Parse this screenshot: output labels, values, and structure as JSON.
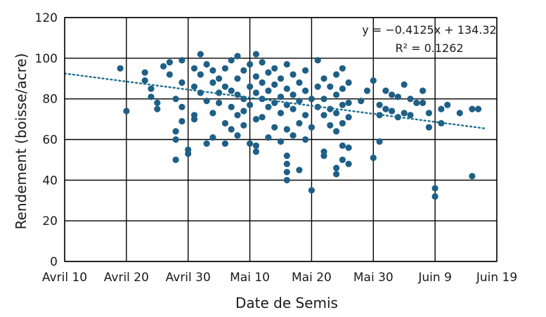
{
  "chart_data": {
    "type": "scatter",
    "title": "",
    "xlabel": "Date de Semis",
    "ylabel": "Rendement (boisse/acre)",
    "x_ticks": [
      "Avril 10",
      "Avril 20",
      "Avril 30",
      "Mai 10",
      "Mai 20",
      "Mai 30",
      "Juin 9",
      "Juin 19"
    ],
    "y_ticks": [
      "0",
      "20",
      "40",
      "60",
      "80",
      "100",
      "120"
    ],
    "xlim": [
      "Avril 10",
      "Juin 19"
    ],
    "ylim": [
      0,
      120
    ],
    "grid": true,
    "point_color": "#1f5f86",
    "trendline": {
      "equation": "y = −0.4125x + 134.32",
      "r_squared": "R² = 0.1262",
      "from": [
        "Avril 10",
        92.5
      ],
      "to": [
        "Juin 17",
        65.5
      ],
      "color": "#1f6f8f"
    },
    "points": [
      [
        "Avril 19",
        95
      ],
      [
        "Avril 20",
        74
      ],
      [
        "Avril 23",
        93
      ],
      [
        "Avril 23",
        89
      ],
      [
        "Avril 24",
        85
      ],
      [
        "Avril 24",
        81
      ],
      [
        "Avril 25",
        78
      ],
      [
        "Avril 25",
        75
      ],
      [
        "Avril 26",
        96
      ],
      [
        "Avril 27",
        98
      ],
      [
        "Avril 27",
        92
      ],
      [
        "Avril 28",
        80
      ],
      [
        "Avril 28",
        64
      ],
      [
        "Avril 28",
        60
      ],
      [
        "Avril 28",
        50
      ],
      [
        "Avril 29",
        99
      ],
      [
        "Avril 29",
        88
      ],
      [
        "Avril 29",
        76
      ],
      [
        "Avril 29",
        69
      ],
      [
        "Avril 30",
        55
      ],
      [
        "Avril 30",
        53
      ],
      [
        "Mai 1",
        95
      ],
      [
        "Mai 1",
        86
      ],
      [
        "Mai 1",
        72
      ],
      [
        "Mai 1",
        70
      ],
      [
        "Mai 2",
        102
      ],
      [
        "Mai 2",
        92
      ],
      [
        "Mai 2",
        83
      ],
      [
        "Mai 3",
        97
      ],
      [
        "Mai 3",
        79
      ],
      [
        "Mai 3",
        58
      ],
      [
        "Mai 4",
        94
      ],
      [
        "Mai 4",
        88
      ],
      [
        "Mai 4",
        73
      ],
      [
        "Mai 4",
        61
      ],
      [
        "Mai 5",
        90
      ],
      [
        "Mai 5",
        83
      ],
      [
        "Mai 5",
        78
      ],
      [
        "Mai 6",
        95
      ],
      [
        "Mai 6",
        86
      ],
      [
        "Mai 6",
        68
      ],
      [
        "Mai 6",
        58
      ],
      [
        "Mai 7",
        99
      ],
      [
        "Mai 7",
        84
      ],
      [
        "Mai 7",
        76
      ],
      [
        "Mai 7",
        65
      ],
      [
        "Mai 8",
        101
      ],
      [
        "Mai 8",
        90
      ],
      [
        "Mai 8",
        82
      ],
      [
        "Mai 8",
        72
      ],
      [
        "Mai 8",
        62
      ],
      [
        "Mai 9",
        94
      ],
      [
        "Mai 9",
        80
      ],
      [
        "Mai 9",
        74
      ],
      [
        "Mai 9",
        67
      ],
      [
        "Mai 10",
        97
      ],
      [
        "Mai 10",
        86
      ],
      [
        "Mai 10",
        77
      ],
      [
        "Mai 10",
        58
      ],
      [
        "Mai 11",
        102
      ],
      [
        "Mai 11",
        91
      ],
      [
        "Mai 11",
        83
      ],
      [
        "Mai 11",
        70
      ],
      [
        "Mai 11",
        57
      ],
      [
        "Mai 11",
        54
      ],
      [
        "Mai 12",
        98
      ],
      [
        "Mai 12",
        88
      ],
      [
        "Mai 12",
        80
      ],
      [
        "Mai 12",
        71
      ],
      [
        "Mai 13",
        93
      ],
      [
        "Mai 13",
        84
      ],
      [
        "Mai 13",
        76
      ],
      [
        "Mai 13",
        61
      ],
      [
        "Mai 14",
        95
      ],
      [
        "Mai 14",
        87
      ],
      [
        "Mai 14",
        78
      ],
      [
        "Mai 14",
        66
      ],
      [
        "Mai 15",
        90
      ],
      [
        "Mai 15",
        81
      ],
      [
        "Mai 15",
        73
      ],
      [
        "Mai 15",
        59
      ],
      [
        "Mai 16",
        97
      ],
      [
        "Mai 16",
        85
      ],
      [
        "Mai 16",
        77
      ],
      [
        "Mai 16",
        65
      ],
      [
        "Mai 16",
        52
      ],
      [
        "Mai 16",
        48
      ],
      [
        "Mai 16",
        44
      ],
      [
        "Mai 16",
        40
      ],
      [
        "Mai 17",
        92
      ],
      [
        "Mai 17",
        82
      ],
      [
        "Mai 17",
        75
      ],
      [
        "Mai 17",
        62
      ],
      [
        "Mai 18",
        88
      ],
      [
        "Mai 18",
        79
      ],
      [
        "Mai 18",
        68
      ],
      [
        "Mai 18",
        45
      ],
      [
        "Mai 19",
        94
      ],
      [
        "Mai 19",
        84
      ],
      [
        "Mai 19",
        72
      ],
      [
        "Mai 19",
        60
      ],
      [
        "Mai 20",
        80
      ],
      [
        "Mai 20",
        66
      ],
      [
        "Mai 20",
        35
      ],
      [
        "Mai 21",
        99
      ],
      [
        "Mai 21",
        86
      ],
      [
        "Mai 21",
        76
      ],
      [
        "Mai 22",
        90
      ],
      [
        "Mai 22",
        80
      ],
      [
        "Mai 22",
        72
      ],
      [
        "Mai 22",
        54
      ],
      [
        "Mai 22",
        52
      ],
      [
        "Mai 23",
        86
      ],
      [
        "Mai 23",
        75
      ],
      [
        "Mai 23",
        67
      ],
      [
        "Mai 24",
        92
      ],
      [
        "Mai 24",
        82
      ],
      [
        "Mai 24",
        73
      ],
      [
        "Mai 24",
        64
      ],
      [
        "Mai 24",
        46
      ],
      [
        "Mai 24",
        43
      ],
      [
        "Mai 25",
        95
      ],
      [
        "Mai 25",
        85
      ],
      [
        "Mai 25",
        77
      ],
      [
        "Mai 25",
        68
      ],
      [
        "Mai 25",
        57
      ],
      [
        "Mai 25",
        50
      ],
      [
        "Mai 26",
        88
      ],
      [
        "Mai 26",
        78
      ],
      [
        "Mai 26",
        71
      ],
      [
        "Mai 26",
        56
      ],
      [
        "Mai 26",
        48
      ],
      [
        "Mai 28",
        79
      ],
      [
        "Mai 29",
        84
      ],
      [
        "Mai 30",
        89
      ],
      [
        "Mai 30",
        51
      ],
      [
        "Mai 31",
        77
      ],
      [
        "Mai 31",
        72
      ],
      [
        "Mai 31",
        59
      ],
      [
        "Juin 1",
        84
      ],
      [
        "Juin 1",
        75
      ],
      [
        "Juin 2",
        82
      ],
      [
        "Juin 2",
        74
      ],
      [
        "Juin 3",
        81
      ],
      [
        "Juin 3",
        71
      ],
      [
        "Juin 4",
        87
      ],
      [
        "Juin 4",
        73
      ],
      [
        "Juin 5",
        80
      ],
      [
        "Juin 5",
        72
      ],
      [
        "Juin 6",
        78
      ],
      [
        "Juin 7",
        84
      ],
      [
        "Juin 7",
        78
      ],
      [
        "Juin 8",
        73
      ],
      [
        "Juin 8",
        66
      ],
      [
        "Juin 9",
        36
      ],
      [
        "Juin 9",
        32
      ],
      [
        "Juin 10",
        75
      ],
      [
        "Juin 10",
        68
      ],
      [
        "Juin 11",
        77
      ],
      [
        "Juin 13",
        73
      ],
      [
        "Juin 15",
        75
      ],
      [
        "Juin 15",
        42
      ],
      [
        "Juin 16",
        75
      ]
    ]
  }
}
